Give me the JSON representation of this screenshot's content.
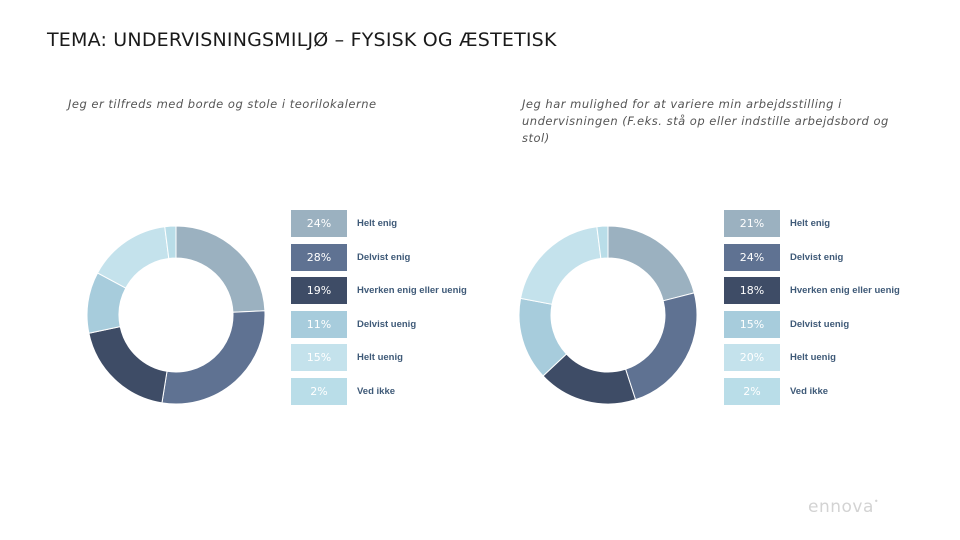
{
  "page": {
    "title": "TEMA: UNDERVISNINGSMILJØ – FYSISK OG ÆSTETISK"
  },
  "brand": {
    "logo_text": "ennova",
    "logo_mark": "•"
  },
  "chart_data": [
    {
      "type": "pie",
      "subtype": "donut",
      "title": "Jeg er tilfreds med borde og stole i teorilokalerne",
      "categories": [
        "Helt enig",
        "Delvist enig",
        "Hverken enig eller uenig",
        "Delvist uenig",
        "Helt uenig",
        "Ved ikke"
      ],
      "values": [
        24,
        28,
        19,
        11,
        15,
        2
      ],
      "labels": [
        "24%",
        "28%",
        "19%",
        "11%",
        "15%",
        "2%"
      ],
      "colors": [
        "#9bb1c0",
        "#5f7292",
        "#3e4c66",
        "#a7ccdc",
        "#c4e2ec",
        "#b9dde8"
      ],
      "legend": "right",
      "start_angle_deg": 0,
      "direction": "clockwise"
    },
    {
      "type": "pie",
      "subtype": "donut",
      "title": "Jeg har mulighed for at variere min arbejdsstilling i undervisningen (F.eks. stå op eller indstille arbejdsbord og stol)",
      "categories": [
        "Helt enig",
        "Delvist enig",
        "Hverken enig eller uenig",
        "Delvist uenig",
        "Helt uenig",
        "Ved ikke"
      ],
      "values": [
        21,
        24,
        18,
        15,
        20,
        2
      ],
      "labels": [
        "21%",
        "24%",
        "18%",
        "15%",
        "20%",
        "2%"
      ],
      "colors": [
        "#9bb1c0",
        "#5f7292",
        "#3e4c66",
        "#a7ccdc",
        "#c4e2ec",
        "#b9dde8"
      ],
      "legend": "right",
      "start_angle_deg": 0,
      "direction": "clockwise"
    }
  ]
}
